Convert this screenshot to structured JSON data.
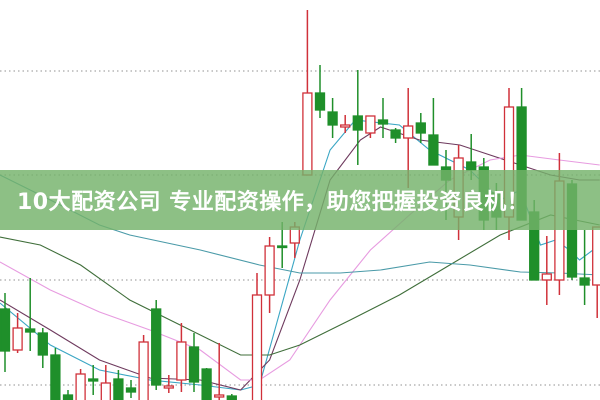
{
  "banner": {
    "text": "10大配资公司 专业配资操作，助您把握投资良机！",
    "color": "#74b26a"
  },
  "chart_data": {
    "type": "candlestick",
    "ylim": [
      10,
      50
    ],
    "grid": true,
    "gridlines": [
      42.9,
      32.5,
      22.0,
      11.5
    ],
    "colors": {
      "up": "#d0313a",
      "down": "#1f8f2a",
      "grid": "#a8a8a8"
    },
    "candles": [
      [
        19.1,
        20.7,
        12.8,
        14.9
      ],
      [
        15.0,
        18.7,
        14.7,
        17.2
      ],
      [
        17.1,
        22.2,
        14.9,
        16.8
      ],
      [
        16.7,
        17.2,
        13.2,
        14.5
      ],
      [
        14.5,
        15.2,
        9.5,
        9.8
      ],
      [
        10.5,
        11.0,
        9.4,
        9.6
      ],
      [
        9.8,
        13.1,
        9.5,
        12.6
      ],
      [
        12.1,
        13.5,
        10.5,
        11.9
      ],
      [
        9.8,
        13.5,
        9.5,
        11.7
      ],
      [
        12.1,
        13.0,
        9.5,
        9.8
      ],
      [
        11.2,
        12.0,
        10.2,
        10.8
      ],
      [
        9.8,
        16.5,
        9.5,
        15.8
      ],
      [
        19.1,
        20.0,
        11.0,
        11.5
      ],
      [
        11.2,
        12.5,
        10.7,
        11.4
      ],
      [
        12.0,
        17.7,
        10.8,
        15.8
      ],
      [
        15.3,
        16.7,
        10.8,
        11.8
      ],
      [
        13.1,
        13.2,
        9.5,
        9.8
      ],
      [
        10.3,
        15.7,
        9.8,
        10.5
      ],
      [
        10.4,
        10.6,
        9.5,
        9.8
      ],
      [
        9.7,
        9.9,
        9.4,
        9.6
      ],
      [
        9.8,
        22.7,
        9.5,
        20.5
      ],
      [
        20.5,
        26.3,
        18.7,
        25.4
      ],
      [
        25.4,
        27.8,
        23.2,
        25.3
      ],
      [
        25.7,
        27.8,
        24.2,
        27.3
      ],
      [
        32.5,
        49.0,
        32.5,
        40.7
      ],
      [
        40.7,
        43.5,
        38.2,
        39.0
      ],
      [
        38.8,
        40.2,
        36.2,
        37.5
      ],
      [
        37.3,
        38.5,
        36.7,
        37.5
      ],
      [
        38.4,
        43.0,
        33.5,
        37.0
      ],
      [
        36.7,
        38.4,
        36.2,
        38.4
      ],
      [
        38.0,
        40.2,
        36.2,
        37.6
      ],
      [
        37.0,
        37.2,
        35.7,
        36.2
      ],
      [
        36.2,
        41.2,
        31.2,
        37.4
      ],
      [
        37.7,
        38.7,
        35.7,
        36.7
      ],
      [
        36.5,
        40.2,
        33.5,
        33.5
      ],
      [
        33.3,
        35.0,
        28.0,
        32.0
      ],
      [
        28.3,
        35.5,
        26.0,
        34.2
      ],
      [
        33.8,
        36.6,
        32.0,
        33.0
      ],
      [
        33.3,
        34.2,
        27.0,
        28.0
      ],
      [
        30.7,
        31.7,
        27.0,
        28.3
      ],
      [
        28.3,
        41.2,
        26.0,
        39.3
      ],
      [
        39.3,
        41.2,
        28.0,
        28.0
      ],
      [
        28.8,
        30.0,
        22.0,
        22.0
      ],
      [
        22.0,
        26.4,
        19.5,
        22.6
      ],
      [
        22.0,
        34.7,
        20.5,
        31.9
      ],
      [
        31.6,
        32.0,
        22.0,
        22.3
      ],
      [
        22.2,
        27.0,
        19.5,
        21.5
      ],
      [
        21.5,
        27.3,
        18.2,
        27.3
      ]
    ],
    "candle_format": [
      "open",
      "high",
      "low",
      "close"
    ],
    "moving_averages": [
      {
        "color": "#3aa6c4",
        "points": [
          [
            -0.4,
            19.7
          ],
          [
            3.6,
            15.5
          ],
          [
            7.5,
            13.0
          ],
          [
            11.5,
            12.0
          ],
          [
            15.5,
            11.5
          ],
          [
            18.7,
            11.0
          ],
          [
            20.2,
            11.5
          ],
          [
            23.4,
            26.0
          ],
          [
            25.8,
            35.0
          ],
          [
            27.8,
            38.0
          ],
          [
            31.3,
            37.5
          ],
          [
            33.7,
            35.0
          ],
          [
            36.9,
            33.0
          ],
          [
            39.3,
            30.0
          ],
          [
            40.9,
            31.0
          ],
          [
            42.5,
            25.5
          ],
          [
            43.7,
            26.0
          ],
          [
            44.8,
            25.0
          ],
          [
            45.6,
            24.0
          ],
          [
            47.2,
            25.5
          ]
        ]
      },
      {
        "color": "#6e3a5e",
        "points": [
          [
            -0.4,
            20.0
          ],
          [
            3.6,
            17.0
          ],
          [
            7.5,
            14.0
          ],
          [
            11.5,
            12.2
          ],
          [
            15.5,
            12.0
          ],
          [
            18.7,
            11.0
          ],
          [
            21.0,
            14.0
          ],
          [
            23.4,
            22.0
          ],
          [
            25.8,
            32.0
          ],
          [
            28.2,
            36.0
          ],
          [
            29.8,
            37.3
          ],
          [
            32.9,
            36.0
          ],
          [
            36.1,
            35.5
          ],
          [
            38.5,
            34.5
          ],
          [
            40.9,
            33.5
          ],
          [
            43.3,
            32.5
          ],
          [
            45.6,
            32.0
          ],
          [
            47.2,
            32.0
          ]
        ]
      },
      {
        "color": "#e79be0",
        "points": [
          [
            -0.4,
            23.8
          ],
          [
            3.6,
            21.0
          ],
          [
            7.5,
            18.8
          ],
          [
            11.5,
            17.0
          ],
          [
            15.5,
            15.0
          ],
          [
            18.7,
            12.0
          ],
          [
            20.2,
            12.0
          ],
          [
            22.6,
            14.0
          ],
          [
            25.8,
            20.0
          ],
          [
            29.0,
            25.0
          ],
          [
            32.1,
            28.5
          ],
          [
            35.3,
            32.0
          ],
          [
            38.5,
            34.0
          ],
          [
            40.9,
            34.5
          ],
          [
            44.0,
            34.0
          ],
          [
            47.2,
            33.5
          ]
        ]
      },
      {
        "color": "#3f6e3a",
        "points": [
          [
            -0.4,
            26.3
          ],
          [
            2.8,
            25.5
          ],
          [
            6.0,
            23.5
          ],
          [
            9.9,
            20.0
          ],
          [
            13.9,
            17.5
          ],
          [
            18.7,
            14.5
          ],
          [
            21.0,
            14.5
          ],
          [
            23.4,
            15.5
          ],
          [
            27.4,
            18.0
          ],
          [
            31.3,
            20.5
          ],
          [
            35.3,
            23.5
          ],
          [
            39.3,
            26.5
          ],
          [
            43.3,
            28.5
          ],
          [
            47.2,
            27.5
          ]
        ]
      },
      {
        "color": "#4a9aa8",
        "points": [
          [
            -0.4,
            32.5
          ],
          [
            3.6,
            30.0
          ],
          [
            7.5,
            27.5
          ],
          [
            9.9,
            26.5
          ],
          [
            15.5,
            25.0
          ],
          [
            20.2,
            23.5
          ],
          [
            23.4,
            22.7
          ],
          [
            26.6,
            22.7
          ],
          [
            29.8,
            23.0
          ],
          [
            33.7,
            23.8
          ],
          [
            36.9,
            23.5
          ],
          [
            40.9,
            22.8
          ],
          [
            44.0,
            22.7
          ],
          [
            47.2,
            22.5
          ]
        ]
      }
    ]
  }
}
